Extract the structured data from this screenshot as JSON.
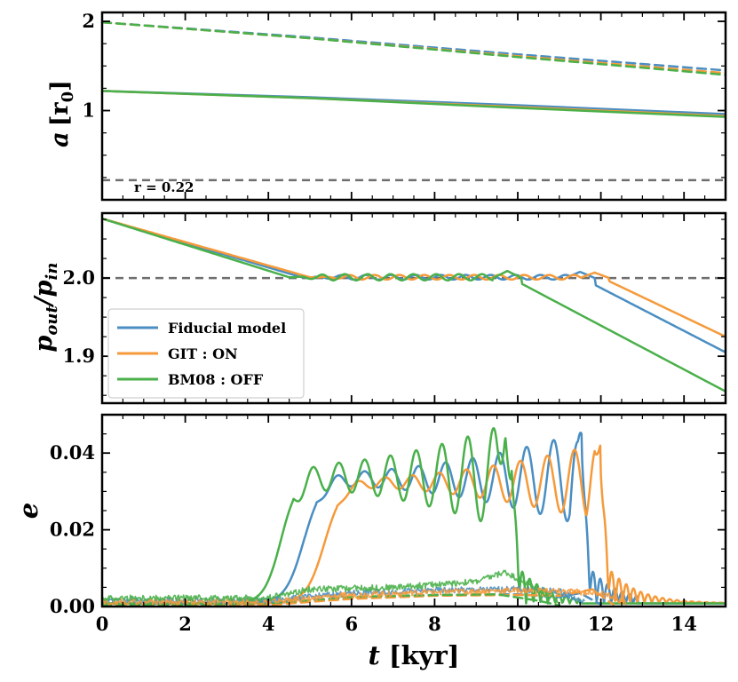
{
  "colors": {
    "fiducial": "#4a8ec2",
    "git": "#f59a3b",
    "bm08": "#4ab04a",
    "reference": "#6e6e6e",
    "frame": "#000000"
  },
  "chart_data": [
    {
      "panel": "top",
      "type": "line",
      "ylabel_main": "a",
      "ylabel_bracket_open": "[r",
      "ylabel_sub": "0",
      "ylabel_bracket_close": "]",
      "xlim": [
        0,
        15
      ],
      "ylim": [
        0.0,
        2.1
      ],
      "yticks": [
        1,
        2
      ],
      "ytick_labels": [
        "1",
        "2"
      ],
      "annotation": "r = 0.22",
      "reference_line": {
        "y": 0.22,
        "style": "dashed",
        "color": "#6e6e6e"
      },
      "series": [
        {
          "name": "Fiducial model inner",
          "color": "#4a8ec2",
          "style": "solid",
          "x": [
            0,
            5,
            10,
            15
          ],
          "y": [
            1.22,
            1.15,
            1.06,
            0.96
          ]
        },
        {
          "name": "GIT : ON inner",
          "color": "#f59a3b",
          "style": "solid",
          "x": [
            0,
            5,
            10,
            15
          ],
          "y": [
            1.22,
            1.14,
            1.04,
            0.94
          ]
        },
        {
          "name": "BM08 : OFF inner",
          "color": "#4ab04a",
          "style": "solid",
          "x": [
            0,
            5,
            10,
            15
          ],
          "y": [
            1.22,
            1.14,
            1.03,
            0.93
          ]
        },
        {
          "name": "Fiducial model outer",
          "color": "#4a8ec2",
          "style": "dashed",
          "x": [
            0,
            5,
            10,
            15
          ],
          "y": [
            1.99,
            1.82,
            1.63,
            1.45
          ]
        },
        {
          "name": "GIT : ON outer",
          "color": "#f59a3b",
          "style": "dashed",
          "x": [
            0,
            5,
            10,
            15
          ],
          "y": [
            1.99,
            1.81,
            1.61,
            1.42
          ]
        },
        {
          "name": "BM08 : OFF outer",
          "color": "#4ab04a",
          "style": "dashed",
          "x": [
            0,
            5,
            10,
            15
          ],
          "y": [
            1.99,
            1.81,
            1.6,
            1.4
          ]
        }
      ]
    },
    {
      "panel": "middle",
      "type": "line",
      "ylabel_main": "p",
      "ylabel_sub_out": "out",
      "ylabel_slash": "/p",
      "ylabel_sub_in": "in",
      "xlim": [
        0,
        15
      ],
      "ylim": [
        1.84,
        2.083
      ],
      "yticks": [
        1.9,
        2.0
      ],
      "ytick_labels": [
        "1.9",
        "2.0"
      ],
      "reference_line": {
        "y": 2.0,
        "style": "dashed",
        "color": "#6e6e6e"
      },
      "legend": {
        "placement": "middle-left",
        "entries": [
          {
            "label": "Fiducial model",
            "color": "#4a8ec2"
          },
          {
            "label": "GIT : ON",
            "color": "#f59a3b"
          },
          {
            "label": "BM08 : OFF",
            "color": "#4ab04a"
          }
        ]
      },
      "series": [
        {
          "name": "Fiducial model",
          "color": "#4a8ec2",
          "x": [
            0,
            4.8,
            11.5,
            15
          ],
          "y": [
            2.076,
            2.001,
            2.001,
            1.905
          ],
          "osc": {
            "from": 5.0,
            "to": 11.5,
            "amp": 0.003,
            "period": 0.6,
            "peak_x": 11.5,
            "peak_y": 2.008
          }
        },
        {
          "name": "GIT : ON",
          "color": "#f59a3b",
          "x": [
            0,
            5.0,
            12.0,
            15
          ],
          "y": [
            2.076,
            2.001,
            2.001,
            1.925
          ],
          "osc": {
            "from": 5.2,
            "to": 12.0,
            "amp": 0.003,
            "period": 0.6,
            "peak_x": 11.85,
            "peak_y": 2.007
          }
        },
        {
          "name": "BM08 : OFF",
          "color": "#4ab04a",
          "x": [
            0,
            4.5,
            9.8,
            15
          ],
          "y": [
            2.076,
            2.001,
            2.001,
            1.855
          ],
          "osc": {
            "from": 4.6,
            "to": 9.8,
            "amp": 0.004,
            "period": 0.55,
            "peak_x": 9.75,
            "peak_y": 2.009
          }
        }
      ]
    },
    {
      "panel": "bottom",
      "type": "line",
      "ylabel": "e",
      "xlabel_main": "t",
      "xlabel_unit": "[kyr]",
      "xlim": [
        0,
        15
      ],
      "ylim": [
        0.0,
        0.05
      ],
      "yticks": [
        0.0,
        0.02,
        0.04
      ],
      "ytick_labels": [
        "0.00",
        "0.02",
        "0.04"
      ],
      "xticks": [
        0,
        2,
        4,
        6,
        8,
        10,
        12,
        14
      ],
      "xtick_labels": [
        "0",
        "2",
        "4",
        "6",
        "8",
        "10",
        "12",
        "14"
      ],
      "series": [
        {
          "name": "Fiducial model",
          "color": "#4a8ec2",
          "rise_center": 4.85,
          "rise_width": 0.22,
          "plateau": 0.0325,
          "osc_amp_start": 0.0015,
          "osc_amp_end": 0.012,
          "osc_period": 0.65,
          "osc_growth_end": 11.5,
          "cutoff": 11.55,
          "tail_end": 12.9,
          "peak_x": 11.45,
          "peak_y": 0.043
        },
        {
          "name": "GIT : ON",
          "color": "#f59a3b",
          "rise_center": 5.35,
          "rise_width": 0.22,
          "plateau": 0.0315,
          "osc_amp_start": 0.001,
          "osc_amp_end": 0.01,
          "osc_period": 0.65,
          "osc_growth_end": 11.9,
          "cutoff": 12.0,
          "tail_end": 15.0,
          "peak_x": 11.85,
          "peak_y": 0.0405
        },
        {
          "name": "BM08 : OFF",
          "color": "#4ab04a",
          "rise_center": 4.3,
          "rise_width": 0.2,
          "plateau": 0.033,
          "osc_amp_start": 0.003,
          "osc_amp_end": 0.014,
          "osc_period": 0.62,
          "osc_growth_end": 9.75,
          "cutoff": 9.85,
          "tail_end": 11.5,
          "peak_x": 9.7,
          "peak_y": 0.0445
        },
        {
          "name": "Fiducial model dashed",
          "color": "#4a8ec2",
          "style": "dashed",
          "x": [
            0,
            4,
            6,
            8,
            10,
            11,
            11.5,
            12
          ],
          "y": [
            0.0002,
            0.0006,
            0.0022,
            0.003,
            0.0032,
            0.0025,
            0.0035,
            0.0005
          ]
        },
        {
          "name": "GIT : ON dashed",
          "color": "#f59a3b",
          "style": "dashed",
          "x": [
            0,
            4,
            6,
            8,
            10,
            11,
            11.8,
            12.3
          ],
          "y": [
            0.0002,
            0.0004,
            0.002,
            0.0028,
            0.003,
            0.0028,
            0.0045,
            0.0005
          ]
        },
        {
          "name": "BM08 : OFF dashed",
          "color": "#4ab04a",
          "style": "dashed",
          "x": [
            0,
            4,
            6,
            8,
            9.5,
            10.5,
            11
          ],
          "y": [
            0.0002,
            0.0008,
            0.0025,
            0.003,
            0.0032,
            0.0015,
            0.0003
          ]
        },
        {
          "name": "Fiducial model noisy",
          "color": "#4a8ec2",
          "style": "noisy",
          "x": [
            0,
            4,
            6,
            8,
            10,
            11,
            11.6
          ],
          "y": [
            0.0015,
            0.0015,
            0.0035,
            0.0042,
            0.0045,
            0.004,
            0.001
          ]
        },
        {
          "name": "GIT : ON noisy",
          "color": "#f59a3b",
          "style": "noisy",
          "x": [
            0,
            4,
            6,
            8,
            10,
            11,
            12,
            12.6
          ],
          "y": [
            0.0012,
            0.0012,
            0.003,
            0.0038,
            0.0042,
            0.004,
            0.0035,
            0.001
          ]
        },
        {
          "name": "BM08 : OFF noisy",
          "color": "#4ab04a",
          "style": "noisy",
          "x": [
            0,
            4,
            5,
            7,
            9,
            9.7,
            10.3,
            11
          ],
          "y": [
            0.0022,
            0.0022,
            0.0045,
            0.005,
            0.0065,
            0.009,
            0.0055,
            0.001
          ]
        }
      ]
    }
  ]
}
